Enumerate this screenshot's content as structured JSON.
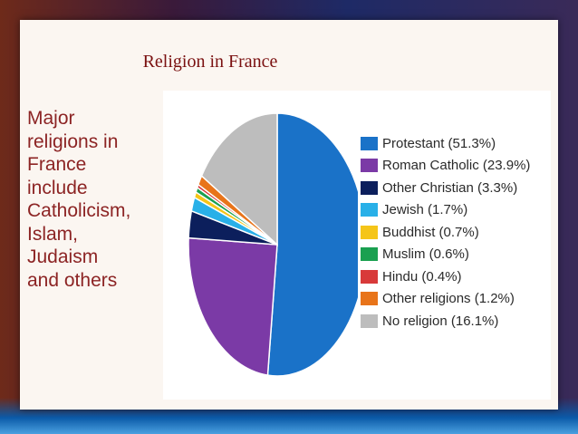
{
  "slide": {
    "title": "Religion in France",
    "side_text": [
      "Major",
      "religions in",
      "France",
      "include",
      "Catholicism,",
      "Islam,",
      "Judaism",
      " and others"
    ]
  },
  "chart_data": {
    "type": "pie",
    "slices": [
      {
        "label": "Protestant (51.3%)",
        "value": 51.3,
        "color": "#1a72c8"
      },
      {
        "label": "Roman Catholic (23.9%)",
        "value": 23.9,
        "color": "#7b3aa6"
      },
      {
        "label": "Other Christian (3.3%)",
        "value": 3.3,
        "color": "#0c1f5c"
      },
      {
        "label": "Jewish (1.7%)",
        "value": 1.7,
        "color": "#29b0e8"
      },
      {
        "label": "Buddhist (0.7%)",
        "value": 0.7,
        "color": "#f5c518"
      },
      {
        "label": "Muslim (0.6%)",
        "value": 0.6,
        "color": "#1aa050"
      },
      {
        "label": "Hindu (0.4%)",
        "value": 0.4,
        "color": "#d83a3a"
      },
      {
        "label": "Other religions (1.2%)",
        "value": 1.2,
        "color": "#e8741a"
      },
      {
        "label": "No religion (16.1%)",
        "value": 16.1,
        "color": "#bdbdbd"
      }
    ],
    "legend_position": "right"
  }
}
